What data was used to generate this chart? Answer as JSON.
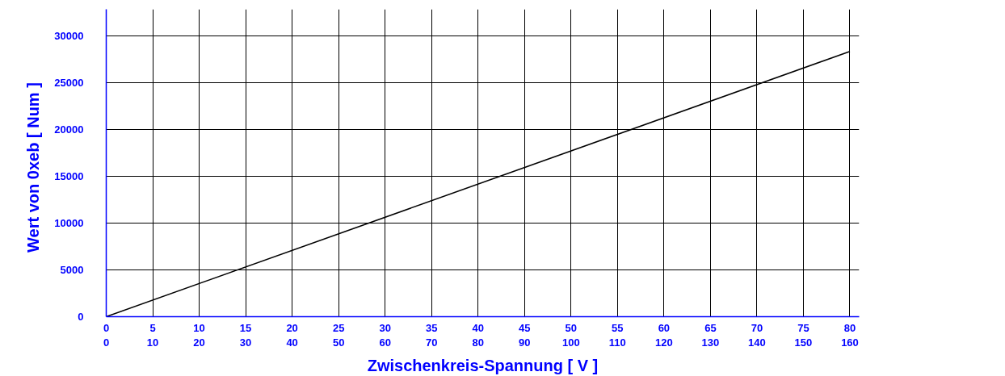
{
  "chart_data": {
    "type": "line",
    "xlabel": "Zwischenkreis-Spannung [ V ]",
    "ylabel": "Wert von  0xeb  [ Num ]",
    "x": [
      0,
      80
    ],
    "series": [
      {
        "color": "#000000",
        "values": [
          0,
          28300
        ]
      }
    ],
    "xlim": [
      0,
      81
    ],
    "xticks": [
      0,
      5,
      10,
      15,
      20,
      25,
      30,
      35,
      40,
      45,
      50,
      55,
      60,
      65,
      70,
      75,
      80
    ],
    "x2lim": [
      0,
      162
    ],
    "x2ticks": [
      0,
      10,
      20,
      30,
      40,
      50,
      60,
      70,
      80,
      90,
      100,
      110,
      120,
      130,
      140,
      150,
      160
    ],
    "ylim": [
      0,
      32800
    ],
    "yticks": [
      0,
      5000,
      10000,
      15000,
      20000,
      25000,
      30000
    ],
    "grid": true,
    "line_style": "solid"
  }
}
